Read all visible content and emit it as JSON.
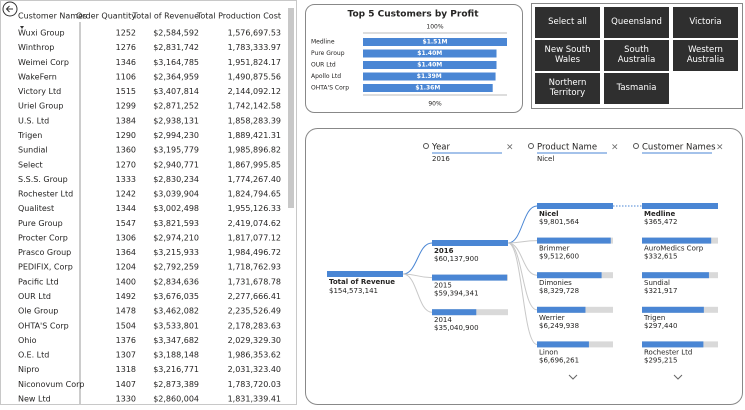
{
  "table": {
    "columns": [
      "Customer Names",
      "Order Quantity",
      "Total of Revenue",
      "Total Production Cost"
    ],
    "rows": [
      [
        "Wuxi Group",
        "1252",
        "$2,584,592",
        "1,576,697.53"
      ],
      [
        "Winthrop",
        "1276",
        "$2,831,742",
        "1,783,333.97"
      ],
      [
        "Weimei Corp",
        "1346",
        "$3,164,785",
        "1,951,824.17"
      ],
      [
        "WakeFern",
        "1106",
        "$2,364,959",
        "1,490,875.56"
      ],
      [
        "Victory Ltd",
        "1515",
        "$3,407,814",
        "2,144,092.12"
      ],
      [
        "Uriel Group",
        "1299",
        "$2,871,252",
        "1,742,142.58"
      ],
      [
        "U.S. Ltd",
        "1384",
        "$2,938,131",
        "1,858,283.39"
      ],
      [
        "Trigen",
        "1290",
        "$2,994,230",
        "1,889,421.31"
      ],
      [
        "Sundial",
        "1360",
        "$3,195,779",
        "1,985,896.82"
      ],
      [
        "Select",
        "1270",
        "$2,940,771",
        "1,867,995.85"
      ],
      [
        "S.S.S. Group",
        "1333",
        "$2,830,234",
        "1,774,267.40"
      ],
      [
        "Rochester Ltd",
        "1242",
        "$3,039,904",
        "1,824,794.65"
      ],
      [
        "Qualitest",
        "1344",
        "$3,002,498",
        "1,955,126.33"
      ],
      [
        "Pure Group",
        "1547",
        "$3,821,593",
        "2,419,074.62"
      ],
      [
        "Procter Corp",
        "1306",
        "$2,974,210",
        "1,817,077.12"
      ],
      [
        "Prasco Group",
        "1364",
        "$3,215,933",
        "1,984,496.72"
      ],
      [
        "PEDIFIX, Corp",
        "1204",
        "$2,792,259",
        "1,718,762.93"
      ],
      [
        "Pacific Ltd",
        "1400",
        "$2,834,636",
        "1,731,678.78"
      ],
      [
        "OUR Ltd",
        "1492",
        "$3,676,035",
        "2,277,666.41"
      ],
      [
        "Ole Group",
        "1478",
        "$3,462,082",
        "2,235,526.49"
      ],
      [
        "OHTA'S Corp",
        "1504",
        "$3,533,801",
        "2,178,283.63"
      ],
      [
        "Ohio",
        "1376",
        "$3,347,682",
        "2,029,329.30"
      ],
      [
        "O.E. Ltd",
        "1307",
        "$3,188,148",
        "1,986,353.62"
      ],
      [
        "Nipro",
        "1318",
        "$3,216,771",
        "2,031,323.40"
      ],
      [
        "Niconovum Corp",
        "1407",
        "$2,873,389",
        "1,783,720.03"
      ],
      [
        "New Ltd",
        "1330",
        "$2,860,004",
        "1,831,339.41"
      ]
    ]
  },
  "chart_data": {
    "type": "bar",
    "title": "Top 5 Customers by Profit",
    "categories": [
      "Medline",
      "Pure Group",
      "OUR Ltd",
      "Apollo Ltd",
      "OHTA'S Corp"
    ],
    "values": [
      1510000,
      1400000,
      1400000,
      1390000,
      1360000
    ],
    "value_labels": [
      "$1.51M",
      "$1.40M",
      "$1.40M",
      "$1.39M",
      "$1.36M"
    ],
    "color": "#4a86d4",
    "axis_top_label": "100%",
    "axis_bottom_label": "90%"
  },
  "slicer": {
    "items": [
      "Select all",
      "Queensland",
      "Victoria",
      "New South Wales",
      "South Australia",
      "Western Australia",
      "Northern Territory",
      "Tasmania"
    ]
  },
  "decomposition_tree": {
    "root": {
      "label": "Total of Revenue",
      "value": 154573141,
      "value_label": "$154,573,141"
    },
    "levels": [
      {
        "field": "Year",
        "selection": "2016",
        "nodes": [
          {
            "label": "2016",
            "value": 60137900,
            "value_label": "$60,137,900"
          },
          {
            "label": "2015",
            "value": 59394341,
            "value_label": "$59,394,341"
          },
          {
            "label": "2014",
            "value": 35040900,
            "value_label": "$35,040,900"
          }
        ]
      },
      {
        "field": "Product Name",
        "selection": "Nicel",
        "nodes": [
          {
            "label": "Nicel",
            "value": 9801564,
            "value_label": "$9,801,564"
          },
          {
            "label": "Brimmer",
            "value": 9512600,
            "value_label": "$9,512,600"
          },
          {
            "label": "Dimonies",
            "value": 8329728,
            "value_label": "$8,329,728"
          },
          {
            "label": "Werrier",
            "value": 6249938,
            "value_label": "$6,249,938"
          },
          {
            "label": "Linon",
            "value": 6696261,
            "value_label": "$6,696,261"
          }
        ]
      },
      {
        "field": "Customer Names",
        "nodes": [
          {
            "label": "Medline",
            "value": 365472,
            "value_label": "$365,472"
          },
          {
            "label": "AuroMedics Corp",
            "value": 332615,
            "value_label": "$332,615"
          },
          {
            "label": "Sundial",
            "value": 321917,
            "value_label": "$321,917"
          },
          {
            "label": "Trigen",
            "value": 297440,
            "value_label": "$297,440"
          },
          {
            "label": "Rochester Ltd",
            "value": 295215,
            "value_label": "$295,215"
          }
        ]
      }
    ]
  }
}
